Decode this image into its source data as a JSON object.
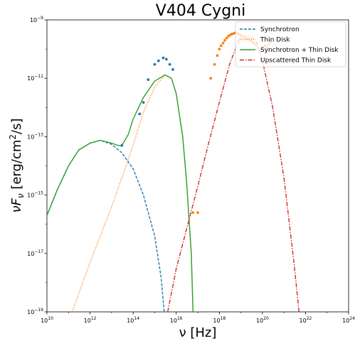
{
  "chart_data": {
    "type": "line",
    "title": "V404 Cygni",
    "xlabel": "ν [Hz]",
    "ylabel": "νF_ν [erg/cm²/s]",
    "x_scale": "log",
    "y_scale": "log",
    "xlim": [
      10000000000.0,
      1e+24
    ],
    "ylim": [
      1e-19,
      1e-09
    ],
    "grid": false,
    "legend_placement": "top-right",
    "x_ticks": [
      {
        "value": 10000000000.0,
        "base": "10",
        "exp": "10"
      },
      {
        "value": 1000000000000.0,
        "base": "10",
        "exp": "12"
      },
      {
        "value": 100000000000000.0,
        "base": "10",
        "exp": "14"
      },
      {
        "value": 1e+16,
        "base": "10",
        "exp": "16"
      },
      {
        "value": 1e+18,
        "base": "10",
        "exp": "18"
      },
      {
        "value": 1e+20,
        "base": "10",
        "exp": "20"
      },
      {
        "value": 1e+22,
        "base": "10",
        "exp": "22"
      },
      {
        "value": 1e+24,
        "base": "10",
        "exp": "24"
      }
    ],
    "y_ticks": [
      {
        "value": 1e-19,
        "base": "10",
        "exp": "−19"
      },
      {
        "value": 1e-17,
        "base": "10",
        "exp": "−17"
      },
      {
        "value": 1e-15,
        "base": "10",
        "exp": "−15"
      },
      {
        "value": 1e-13,
        "base": "10",
        "exp": "−13"
      },
      {
        "value": 1e-11,
        "base": "10",
        "exp": "−11"
      },
      {
        "value": 1e-09,
        "base": "10",
        "exp": "−9"
      }
    ],
    "series": [
      {
        "name": "Synchrotron",
        "style": "dashed",
        "color": "#1f77b4",
        "points": [
          [
            10000000000.0,
            2e-16
          ],
          [
            30000000000.0,
            1.5e-15
          ],
          [
            100000000000.0,
            1e-14
          ],
          [
            300000000000.0,
            3.5e-14
          ],
          [
            1000000000000.0,
            6e-14
          ],
          [
            3000000000000.0,
            7.5e-14
          ],
          [
            10000000000000.0,
            5.5e-14
          ],
          [
            30000000000000.0,
            2.8e-14
          ],
          [
            100000000000000.0,
            8e-15
          ],
          [
            300000000000000.0,
            1e-15
          ],
          [
            1000000000000000.0,
            4e-17
          ],
          [
            2000000000000000.0,
            1.5e-18
          ],
          [
            3000000000000000.0,
            5e-20
          ]
        ]
      },
      {
        "name": "Thin Disk",
        "style": "dotted",
        "color": "#ff7f0e",
        "points": [
          [
            150000000000.0,
            1e-19
          ],
          [
            1000000000000.0,
            5e-18
          ],
          [
            10000000000000.0,
            4e-16
          ],
          [
            100000000000000.0,
            5e-14
          ],
          [
            300000000000000.0,
            7e-13
          ],
          [
            1000000000000000.0,
            5e-12
          ],
          [
            3000000000000000.0,
            1.3e-11
          ],
          [
            6000000000000000.0,
            1e-11
          ],
          [
            1e+16,
            3e-12
          ],
          [
            2e+16,
            1e-13
          ],
          [
            3e+16,
            3e-15
          ],
          [
            5e+16,
            1e-17
          ],
          [
            6e+16,
            1e-19
          ]
        ]
      },
      {
        "name": "Synchrotron + Thin Disk",
        "style": "solid",
        "color": "#2ca02c",
        "points": [
          [
            10000000000.0,
            2e-16
          ],
          [
            30000000000.0,
            1.5e-15
          ],
          [
            100000000000.0,
            1e-14
          ],
          [
            300000000000.0,
            3.5e-14
          ],
          [
            1000000000000.0,
            6e-14
          ],
          [
            3000000000000.0,
            7.5e-14
          ],
          [
            10000000000000.0,
            6e-14
          ],
          [
            20000000000000.0,
            5e-14
          ],
          [
            30000000000000.0,
            5e-14
          ],
          [
            60000000000000.0,
            1.2e-13
          ],
          [
            100000000000000.0,
            4e-13
          ],
          [
            300000000000000.0,
            2.2e-12
          ],
          [
            1000000000000000.0,
            8e-12
          ],
          [
            3000000000000000.0,
            1.3e-11
          ],
          [
            6000000000000000.0,
            1e-11
          ],
          [
            1e+16,
            3e-12
          ],
          [
            2e+16,
            1e-13
          ],
          [
            3e+16,
            3e-15
          ],
          [
            5e+16,
            1e-17
          ],
          [
            6e+16,
            1e-19
          ]
        ]
      },
      {
        "name": "Upscattered Thin Disk",
        "style": "dashdot",
        "color": "#d62728",
        "points": [
          [
            4000000000000000.0,
            1e-19
          ],
          [
            1e+16,
            3e-18
          ],
          [
            1e+17,
            2e-15
          ],
          [
            3e+17,
            5e-14
          ],
          [
            1e+18,
            1.5e-12
          ],
          [
            3e+18,
            3e-11
          ],
          [
            8e+18,
            2e-10
          ],
          [
            2e+19,
            3e-10
          ],
          [
            5e+19,
            2e-10
          ],
          [
            1e+20,
            4e-11
          ],
          [
            3e+20,
            1e-12
          ],
          [
            1e+21,
            4e-15
          ],
          [
            3e+21,
            4e-18
          ],
          [
            5e+21,
            1e-19
          ]
        ]
      }
    ],
    "scatter_series": [
      {
        "color": "#1f77b4",
        "points": [
          [
            200000000000000.0,
            6e-13
          ],
          [
            300000000000000.0,
            1.5e-12
          ],
          [
            500000000000000.0,
            9e-12
          ],
          [
            1000000000000000.0,
            3e-11
          ],
          [
            1500000000000000.0,
            4e-11
          ],
          [
            2500000000000000.0,
            5e-11
          ],
          [
            3500000000000000.0,
            4.5e-11
          ],
          [
            5000000000000000.0,
            3e-11
          ],
          [
            7000000000000000.0,
            2e-11
          ],
          [
            30000000000000.0,
            5e-14
          ]
        ]
      },
      {
        "color": "#ff7f0e",
        "points": [
          [
            6e+16,
            2.5e-16
          ],
          [
            1e+17,
            2.5e-16
          ],
          [
            4e+17,
            1e-11
          ],
          [
            6e+17,
            3e-11
          ],
          [
            8e+17,
            6e-11
          ],
          [
            1e+18,
            1e-10
          ],
          [
            1.2e+18,
            1.3e-10
          ],
          [
            1.5e+18,
            1.6e-10
          ],
          [
            1.8e+18,
            2e-10
          ],
          [
            2.2e+18,
            2.4e-10
          ],
          [
            2.7e+18,
            2.8e-10
          ],
          [
            3.3e+18,
            3.1e-10
          ],
          [
            4e+18,
            3.3e-10
          ],
          [
            5e+18,
            3.5e-10
          ],
          [
            6e+18,
            3.6e-10
          ],
          [
            7e+18,
            3.4e-10
          ],
          [
            8.5e+18,
            3.2e-10
          ],
          [
            1e+19,
            2.9e-10
          ],
          [
            1.2e+19,
            2.7e-10
          ],
          [
            1.5e+19,
            2.6e-10
          ],
          [
            1.8e+19,
            2.3e-10
          ],
          [
            2.2e+19,
            2.2e-10
          ],
          [
            2.7e+19,
            2e-10
          ],
          [
            3.3e+19,
            1.8e-10
          ],
          [
            4e+19,
            1.6e-10
          ],
          [
            5e+19,
            1.4e-10
          ],
          [
            6e+19,
            1.1e-10
          ],
          [
            8e+19,
            9e-11
          ],
          [
            1e+20,
            1.1e-10
          ],
          [
            1.3e+20,
            1.3e-10
          ],
          [
            1.7e+20,
            1.2e-10
          ],
          [
            2e+20,
            1.5e-10
          ],
          [
            2.5e+20,
            1.8e-10
          ]
        ]
      }
    ]
  }
}
